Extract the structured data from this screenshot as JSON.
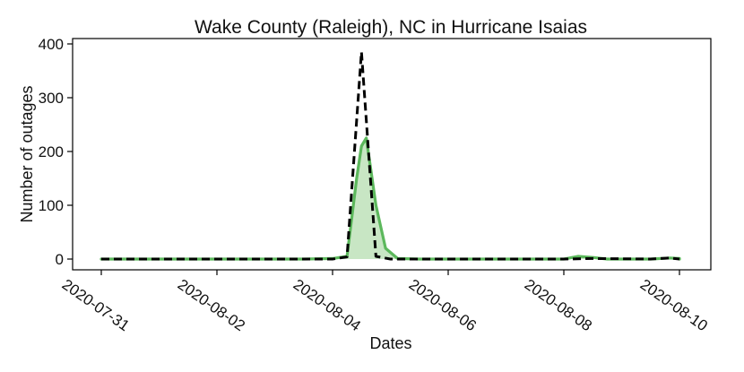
{
  "chart_data": {
    "type": "area",
    "title": "Wake County (Raleigh), NC in Hurricane Isaias",
    "xlabel": "Dates",
    "ylabel": "Number of outages",
    "xlim": [
      "2020-07-31",
      "2020-08-10"
    ],
    "ylim": [
      -20,
      410
    ],
    "x_ticks": [
      "2020-07-31",
      "2020-08-02",
      "2020-08-04",
      "2020-08-06",
      "2020-08-08",
      "2020-08-10"
    ],
    "y_ticks": [
      0,
      100,
      200,
      300,
      400
    ],
    "grid": false,
    "series": [
      {
        "style": "green line with light green fill",
        "color": "#5cb85c",
        "fill_color": "#c8e6c4",
        "points": [
          [
            "2020-07-31T00:00",
            0
          ],
          [
            "2020-08-03T12:00",
            0
          ],
          [
            "2020-08-04T00:00",
            1
          ],
          [
            "2020-08-04T06:00",
            5
          ],
          [
            "2020-08-04T10:00",
            150
          ],
          [
            "2020-08-04T12:00",
            210
          ],
          [
            "2020-08-04T14:00",
            225
          ],
          [
            "2020-08-04T18:00",
            100
          ],
          [
            "2020-08-04T22:00",
            20
          ],
          [
            "2020-08-05T03:00",
            1
          ],
          [
            "2020-08-05T12:00",
            0
          ],
          [
            "2020-08-08T00:00",
            0
          ],
          [
            "2020-08-08T06:00",
            5
          ],
          [
            "2020-08-08T12:00",
            3
          ],
          [
            "2020-08-08T18:00",
            0
          ],
          [
            "2020-08-09T12:00",
            0
          ],
          [
            "2020-08-09T20:00",
            2
          ],
          [
            "2020-08-10T00:00",
            1
          ],
          [
            "2020-08-10T00:01",
            0
          ]
        ]
      },
      {
        "style": "black dashed line",
        "color": "#000000",
        "points": [
          [
            "2020-07-31T00:00",
            0
          ],
          [
            "2020-08-03T12:00",
            0
          ],
          [
            "2020-08-04T00:00",
            0
          ],
          [
            "2020-08-04T06:00",
            4
          ],
          [
            "2020-08-04T12:00",
            385
          ],
          [
            "2020-08-04T18:00",
            5
          ],
          [
            "2020-08-05T00:00",
            0
          ],
          [
            "2020-08-08T00:00",
            0
          ],
          [
            "2020-08-08T12:00",
            1
          ],
          [
            "2020-08-09T12:00",
            0
          ],
          [
            "2020-08-09T20:00",
            2
          ],
          [
            "2020-08-10T00:00",
            0
          ]
        ]
      }
    ]
  }
}
